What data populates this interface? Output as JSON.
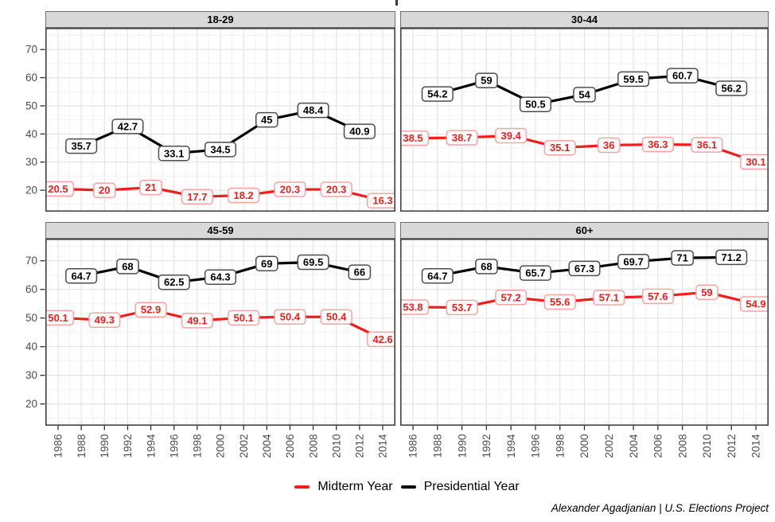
{
  "chart_data": {
    "type": "line",
    "title": "",
    "facet_labels": [
      "18-29",
      "30-44",
      "45-59",
      "60+"
    ],
    "x_ticks": [
      1986,
      1988,
      1990,
      1992,
      1994,
      1996,
      1998,
      2000,
      2002,
      2004,
      2006,
      2008,
      2010,
      2012,
      2014
    ],
    "y_ticks": [
      20,
      30,
      40,
      50,
      60,
      70
    ],
    "ylim_shown": [
      20,
      70
    ],
    "grid": true,
    "legend_position": "bottom",
    "series": [
      {
        "name": "Midterm Year",
        "color": "#F01D1D",
        "label_border": "#F8A3A1",
        "years": [
          1986,
          1990,
          1994,
          1998,
          2002,
          2006,
          2010,
          2014
        ]
      },
      {
        "name": "Presidential Year",
        "color": "#000000",
        "label_border": "#4d4d4d",
        "years": [
          1988,
          1992,
          1996,
          2000,
          2004,
          2008,
          2012
        ]
      }
    ],
    "facets": [
      {
        "label": "18-29",
        "values": [
          [
            20.5,
            20,
            21,
            17.7,
            18.2,
            20.3,
            20.3,
            16.3
          ],
          [
            35.7,
            42.7,
            33.1,
            34.5,
            45,
            48.4,
            40.9
          ]
        ]
      },
      {
        "label": "30-44",
        "values": [
          [
            38.5,
            38.7,
            39.4,
            35.1,
            36,
            36.3,
            36.1,
            30.1
          ],
          [
            54.2,
            59,
            50.5,
            54,
            59.5,
            60.7,
            56.2
          ]
        ]
      },
      {
        "label": "45-59",
        "values": [
          [
            50.1,
            49.3,
            52.9,
            49.1,
            50.1,
            50.4,
            50.4,
            42.6
          ],
          [
            64.7,
            68,
            62.5,
            64.3,
            69,
            69.5,
            66
          ]
        ]
      },
      {
        "label": "60+",
        "values": [
          [
            53.8,
            53.7,
            57.2,
            55.6,
            57.1,
            57.6,
            59,
            54.9
          ],
          [
            64.7,
            68,
            65.7,
            67.3,
            69.7,
            71,
            71.2
          ]
        ]
      }
    ],
    "footer": "Alexander Agadjanian | U.S. Elections Project"
  }
}
